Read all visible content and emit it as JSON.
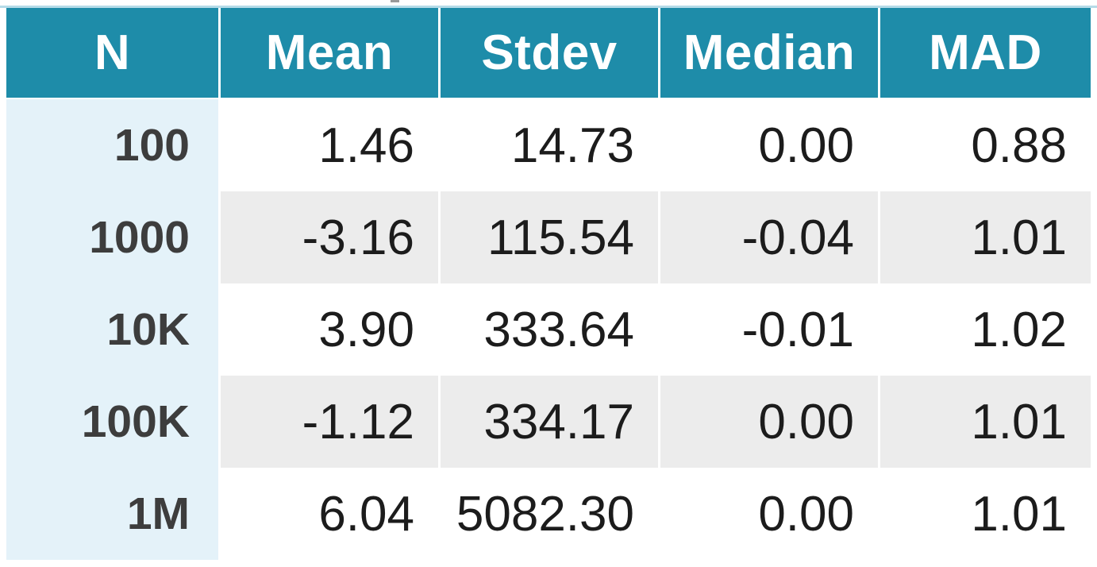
{
  "colors": {
    "header_bg": "#1e8ca9",
    "header_text": "#ffffff",
    "n_column_bg": "#e4f2f9",
    "alt_row_bg": "#ececec",
    "value_text": "#1c1c1c",
    "n_text": "#3d3d3d",
    "top_rule": "#b5dbe8"
  },
  "chart_data": {
    "type": "table",
    "title": "",
    "columns": [
      "N",
      "Mean",
      "Stdev",
      "Median",
      "MAD"
    ],
    "rows": [
      {
        "label": "100",
        "values": [
          "1.46",
          "14.73",
          "0.00",
          "0.88"
        ]
      },
      {
        "label": "1000",
        "values": [
          "-3.16",
          "115.54",
          "-0.04",
          "1.01"
        ]
      },
      {
        "label": "10K",
        "values": [
          "3.90",
          "333.64",
          "-0.01",
          "1.02"
        ]
      },
      {
        "label": "100K",
        "values": [
          "-1.12",
          "334.17",
          "0.00",
          "1.01"
        ]
      },
      {
        "label": "1M",
        "values": [
          "6.04",
          "5082.30",
          "0.00",
          "1.01"
        ]
      }
    ]
  }
}
